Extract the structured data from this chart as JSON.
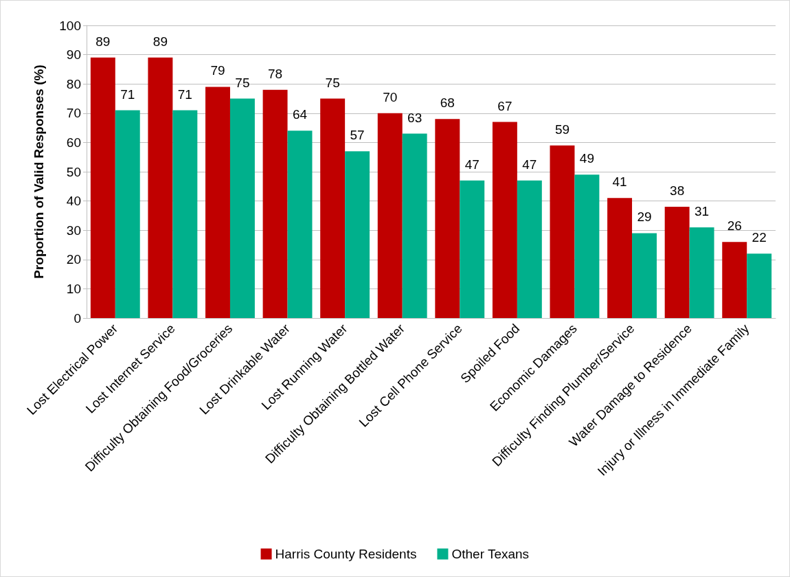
{
  "chart_data": {
    "type": "bar",
    "ylabel": "Proportion of Valid Responses (%)",
    "categories": [
      "Lost Electrical Power",
      "Lost Internet Service",
      "Difficulty Obtaining Food/Groceries",
      "Lost Drinkable Water",
      "Lost Running Water",
      "Difficulty Obtaining Bottled Water",
      "Lost Cell Phone Service",
      "Spoiled Food",
      "Economic Damages",
      "Difficulty Finding Plumber/Service",
      "Water Damage to Residence",
      "Injury or Illness in Immediate Family"
    ],
    "series": [
      {
        "name": "Harris County Residents",
        "color": "#c00000",
        "values": [
          89,
          89,
          79,
          78,
          75,
          70,
          68,
          67,
          59,
          41,
          38,
          26
        ]
      },
      {
        "name": "Other Texans",
        "color": "#00b08c",
        "values": [
          71,
          71,
          75,
          64,
          57,
          63,
          47,
          47,
          49,
          29,
          31,
          22
        ]
      }
    ],
    "ylim": [
      0,
      100
    ],
    "yticks": [
      0,
      10,
      20,
      30,
      40,
      50,
      60,
      70,
      80,
      90,
      100
    ],
    "grid": "y",
    "legend": "bottom",
    "data_labels": true
  }
}
